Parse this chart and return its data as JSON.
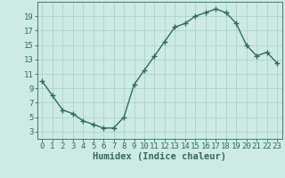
{
  "x": [
    0,
    1,
    2,
    3,
    4,
    5,
    6,
    7,
    8,
    9,
    10,
    11,
    12,
    13,
    14,
    15,
    16,
    17,
    18,
    19,
    20,
    21,
    22,
    23
  ],
  "y": [
    10,
    8,
    6,
    5.5,
    4.5,
    4,
    3.5,
    3.5,
    5,
    9.5,
    11.5,
    13.5,
    15.5,
    17.5,
    18,
    19,
    19.5,
    20,
    19.5,
    18,
    15,
    13.5,
    14,
    12.5
  ],
  "line_color": "#2d6b5e",
  "marker": "+",
  "marker_size": 4,
  "bg_color": "#ceeae6",
  "grid_color": "#aad4ce",
  "xlabel": "Humidex (Indice chaleur)",
  "xlabel_fontsize": 7.5,
  "tick_fontsize": 6.5,
  "xlim": [
    -0.5,
    23.5
  ],
  "ylim": [
    2,
    21
  ],
  "yticks": [
    3,
    5,
    7,
    9,
    11,
    13,
    15,
    17,
    19
  ],
  "xticks": [
    0,
    1,
    2,
    3,
    4,
    5,
    6,
    7,
    8,
    9,
    10,
    11,
    12,
    13,
    14,
    15,
    16,
    17,
    18,
    19,
    20,
    21,
    22,
    23
  ]
}
